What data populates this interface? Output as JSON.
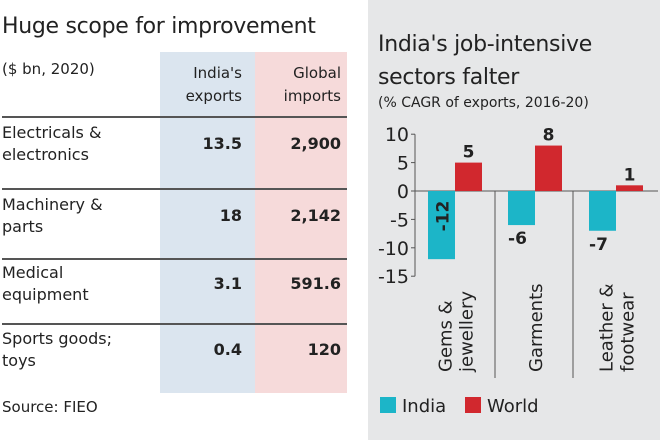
{
  "table": {
    "title": "Huge scope for improvement",
    "subtitle": "($ bn, 2020)",
    "col1_line1": "India's",
    "col1_line2": "exports",
    "col2_line1": "Global",
    "col2_line2": "imports",
    "rows": [
      {
        "l1": "Electricals &",
        "l2": "electronics",
        "exports": "13.5",
        "imports": "2,900"
      },
      {
        "l1": "Machinery &",
        "l2": "parts",
        "exports": "18",
        "imports": "2,142"
      },
      {
        "l1": "Medical",
        "l2": "equipment",
        "exports": "3.1",
        "imports": "591.6"
      },
      {
        "l1": "Sports goods;",
        "l2": "toys",
        "exports": "0.4",
        "imports": "120"
      }
    ],
    "source": "Source: FIEO"
  },
  "chart_data": {
    "type": "bar",
    "title_line1": "India's job-intensive",
    "title_line2": "sectors falter",
    "subtitle": "(% CAGR of exports, 2016-20)",
    "categories": [
      [
        "Gems &",
        "jewellery"
      ],
      [
        "Garments"
      ],
      [
        "Leather &",
        "footwear"
      ]
    ],
    "series": [
      {
        "name": "India",
        "color": "#1cb5c8",
        "values": [
          -12,
          -6,
          -7
        ]
      },
      {
        "name": "World",
        "color": "#d1282e",
        "values": [
          5,
          8,
          1
        ]
      }
    ],
    "ylim": [
      -15,
      10
    ],
    "yticks": [
      10,
      5,
      0,
      -5,
      -10,
      -15
    ],
    "legend": "bottom-left"
  }
}
